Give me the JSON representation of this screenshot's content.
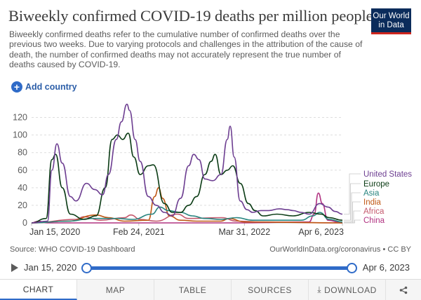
{
  "header": {
    "title": "Biweekly confirmed COVID-19 deaths per million people",
    "subtitle": "Biweekly confirmed deaths refer to the cumulative number of confirmed deaths over the previous two weeks. Due to varying protocols and challenges in the attribution of the cause of death, the number of confirmed deaths may not accurately represent the true number of deaths caused by COVID-19.",
    "logo_line1": "Our World",
    "logo_line2": "in Data"
  },
  "controls": {
    "add_country_label": "Add country"
  },
  "footer": {
    "source": "Source: WHO COVID-19 Dashboard",
    "attribution": "OurWorldInData.org/coronavirus • CC BY"
  },
  "timeline": {
    "start_label": "Jan 15, 2020",
    "end_label": "Apr 6, 2023"
  },
  "tabs": [
    {
      "label": "CHART"
    },
    {
      "label": "MAP"
    },
    {
      "label": "TABLE"
    },
    {
      "label": "SOURCES"
    },
    {
      "label": "DOWNLOAD"
    }
  ],
  "colors": {
    "United States": "#6d3e91",
    "Europe": "#0a3b14",
    "Asia": "#28847f",
    "India": "#c05917",
    "Africa": "#c4586c",
    "China": "#b13381"
  },
  "chart_data": {
    "type": "line",
    "title": "Biweekly confirmed COVID-19 deaths per million people",
    "x_range": [
      "2020-01-15",
      "2023-04-06"
    ],
    "x_ticks": [
      "Jan 15, 2020",
      "Feb 24, 2021",
      "Mar 31, 2022",
      "Apr 6, 2023"
    ],
    "ylim": [
      0,
      130
    ],
    "y_ticks": [
      0,
      20,
      40,
      60,
      80,
      100,
      120
    ],
    "grid": "horizontal dashed",
    "legend": "right",
    "series": [
      {
        "name": "United States",
        "x": [
          "2020-01-15",
          "2020-03-15",
          "2020-04-01",
          "2020-04-20",
          "2020-05-10",
          "2020-06-10",
          "2020-07-01",
          "2020-08-10",
          "2020-09-10",
          "2020-10-10",
          "2020-11-01",
          "2020-12-01",
          "2020-12-20",
          "2021-01-10",
          "2021-01-20",
          "2021-02-10",
          "2021-03-01",
          "2021-04-01",
          "2021-05-01",
          "2021-06-01",
          "2021-07-01",
          "2021-08-01",
          "2021-09-01",
          "2021-09-20",
          "2021-10-10",
          "2021-11-01",
          "2021-12-01",
          "2022-01-01",
          "2022-01-25",
          "2022-02-05",
          "2022-02-20",
          "2022-03-15",
          "2022-04-10",
          "2022-05-01",
          "2022-06-01",
          "2022-07-01",
          "2022-08-10",
          "2022-09-10",
          "2022-10-01",
          "2022-11-01",
          "2022-12-01",
          "2023-01-10",
          "2023-02-10",
          "2023-03-10",
          "2023-04-06"
        ],
        "values": [
          0,
          2,
          60,
          90,
          68,
          30,
          25,
          45,
          38,
          32,
          55,
          95,
          115,
          135,
          128,
          95,
          70,
          30,
          20,
          12,
          8,
          28,
          65,
          78,
          72,
          50,
          48,
          55,
          95,
          110,
          75,
          25,
          15,
          12,
          14,
          14,
          16,
          15,
          14,
          12,
          10,
          22,
          18,
          13,
          10
        ]
      },
      {
        "name": "Europe",
        "x": [
          "2020-01-15",
          "2020-03-10",
          "2020-04-01",
          "2020-04-15",
          "2020-05-10",
          "2020-06-10",
          "2020-08-01",
          "2020-09-15",
          "2020-10-20",
          "2020-11-15",
          "2020-12-05",
          "2020-12-25",
          "2021-01-15",
          "2021-02-05",
          "2021-03-01",
          "2021-04-01",
          "2021-04-20",
          "2021-06-01",
          "2021-07-01",
          "2021-08-01",
          "2021-09-01",
          "2021-10-01",
          "2021-11-01",
          "2021-11-25",
          "2021-12-10",
          "2022-01-01",
          "2022-01-25",
          "2022-02-15",
          "2022-03-15",
          "2022-04-15",
          "2022-05-10",
          "2022-06-10",
          "2022-08-01",
          "2022-10-01",
          "2022-12-01",
          "2023-01-15",
          "2023-02-15",
          "2023-04-06"
        ],
        "values": [
          0,
          5,
          72,
          78,
          40,
          10,
          4,
          8,
          40,
          95,
          100,
          95,
          102,
          75,
          55,
          65,
          66,
          22,
          12,
          12,
          20,
          30,
          55,
          70,
          78,
          55,
          60,
          65,
          45,
          22,
          14,
          8,
          10,
          8,
          12,
          10,
          6,
          3
        ]
      },
      {
        "name": "Asia",
        "x": [
          "2020-01-15",
          "2020-06-01",
          "2020-09-01",
          "2020-12-01",
          "2021-02-01",
          "2021-04-15",
          "2021-05-15",
          "2021-06-15",
          "2021-08-01",
          "2021-09-15",
          "2021-11-01",
          "2022-01-01",
          "2022-03-01",
          "2022-05-01",
          "2022-08-01",
          "2022-11-01",
          "2022-12-15",
          "2023-01-10",
          "2023-02-15",
          "2023-04-06"
        ],
        "values": [
          0,
          2,
          5,
          5,
          4,
          10,
          18,
          14,
          12,
          8,
          5,
          4,
          6,
          3,
          3,
          3,
          8,
          12,
          4,
          1
        ]
      },
      {
        "name": "India",
        "x": [
          "2020-01-15",
          "2020-06-01",
          "2020-09-15",
          "2020-11-01",
          "2021-01-01",
          "2021-04-01",
          "2021-04-25",
          "2021-05-10",
          "2021-05-25",
          "2021-06-20",
          "2021-08-01",
          "2021-10-01",
          "2022-01-01",
          "2022-02-01",
          "2022-04-01",
          "2023-04-06"
        ],
        "values": [
          0,
          2,
          9,
          6,
          2,
          3,
          30,
          40,
          28,
          8,
          3,
          2,
          2,
          5,
          1,
          0
        ]
      },
      {
        "name": "Africa",
        "x": [
          "2020-01-15",
          "2020-07-01",
          "2020-08-01",
          "2020-10-01",
          "2021-01-01",
          "2021-01-25",
          "2021-03-01",
          "2021-05-01",
          "2021-07-20",
          "2021-09-01",
          "2022-01-05",
          "2022-03-01",
          "2022-06-01",
          "2023-04-06"
        ],
        "values": [
          0,
          4,
          7,
          3,
          6,
          9,
          4,
          2,
          10,
          5,
          6,
          2,
          1,
          0
        ]
      },
      {
        "name": "China",
        "x": [
          "2020-01-15",
          "2020-02-10",
          "2020-03-15",
          "2022-03-01",
          "2022-12-01",
          "2022-12-20",
          "2023-01-05",
          "2023-01-20",
          "2023-02-10",
          "2023-04-06"
        ],
        "values": [
          0,
          2,
          0,
          0,
          1,
          10,
          34,
          22,
          3,
          0
        ]
      }
    ]
  }
}
